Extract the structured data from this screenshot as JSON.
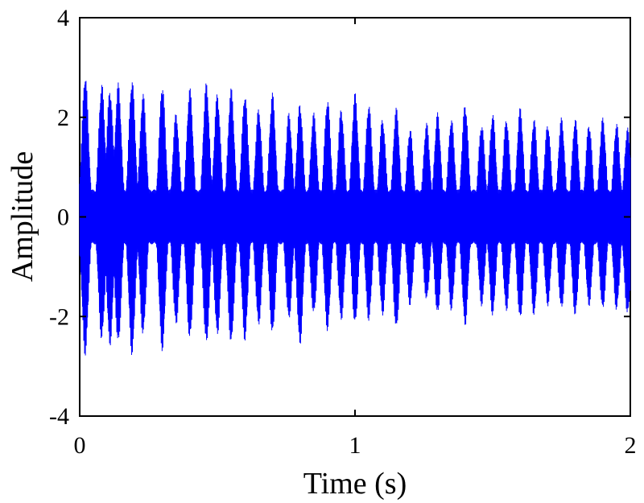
{
  "chart_data": {
    "type": "line",
    "xlabel": "Time (s)",
    "ylabel": "Amplitude",
    "xlim": [
      0,
      2
    ],
    "ylim": [
      -4,
      4
    ],
    "xticks": [
      0,
      1,
      2
    ],
    "xtick_labels": [
      "0",
      "1",
      "2"
    ],
    "yticks": [
      -4,
      -2,
      0,
      2,
      4
    ],
    "ytick_labels": [
      "-4",
      "-2",
      "0",
      "2",
      "4"
    ],
    "grid": false,
    "legend": "none",
    "series": [
      {
        "color": "#0000ff",
        "signal": "dense oscillation modulated by repeating bursts",
        "burst_times_s": [
          0.02,
          0.08,
          0.11,
          0.14,
          0.19,
          0.23,
          0.3,
          0.35,
          0.4,
          0.46,
          0.5,
          0.55,
          0.6,
          0.65,
          0.7,
          0.76,
          0.8,
          0.85,
          0.9,
          0.95,
          1.0,
          1.05,
          1.1,
          1.15,
          1.2,
          1.26,
          1.3,
          1.35,
          1.4,
          1.46,
          1.5,
          1.55,
          1.6,
          1.65,
          1.7,
          1.75,
          1.8,
          1.85,
          1.9,
          1.95,
          1.99
        ],
        "burst_peaks": [
          2.9,
          2.7,
          2.6,
          2.7,
          2.8,
          2.5,
          2.7,
          2.1,
          2.6,
          2.7,
          2.5,
          2.6,
          2.5,
          2.2,
          2.5,
          2.1,
          2.3,
          2.1,
          2.4,
          2.2,
          2.5,
          2.3,
          2.0,
          2.2,
          1.8,
          1.9,
          2.1,
          2.0,
          2.3,
          1.9,
          2.1,
          2.0,
          2.2,
          2.0,
          1.9,
          2.0,
          2.0,
          1.9,
          2.0,
          1.9,
          1.8
        ],
        "burst_troughs": [
          -2.8,
          -2.5,
          -2.6,
          -2.6,
          -2.8,
          -2.4,
          -2.7,
          -2.2,
          -2.5,
          -2.6,
          -2.4,
          -2.6,
          -2.5,
          -2.2,
          -2.4,
          -2.1,
          -2.6,
          -2.0,
          -2.3,
          -2.1,
          -2.2,
          -2.1,
          -2.0,
          -2.3,
          -1.8,
          -1.7,
          -2.0,
          -1.9,
          -2.2,
          -1.8,
          -2.0,
          -1.9,
          -2.1,
          -2.0,
          -1.8,
          -1.9,
          -2.0,
          -1.8,
          -1.9,
          -1.9,
          -2.0
        ],
        "baseline_amplitude": 0.55
      }
    ]
  }
}
